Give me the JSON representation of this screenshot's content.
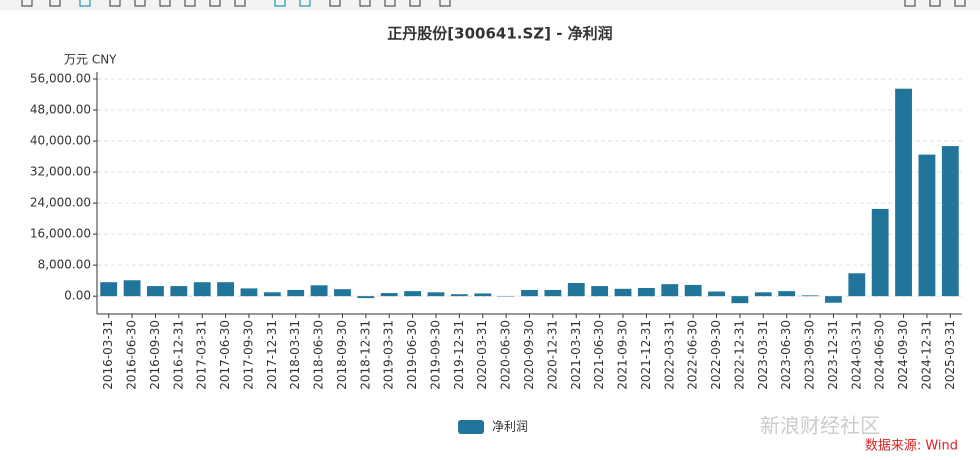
{
  "chart_data": {
    "type": "bar",
    "title": "正丹股份[300641.SZ] - 净利润",
    "unit_label": "万元  CNY",
    "categories": [
      "2016-03-31",
      "2016-06-30",
      "2016-09-30",
      "2016-12-31",
      "2017-03-31",
      "2017-06-30",
      "2017-09-30",
      "2017-12-31",
      "2018-03-31",
      "2018-06-30",
      "2018-09-30",
      "2018-12-31",
      "2019-03-31",
      "2019-06-30",
      "2019-09-30",
      "2019-12-31",
      "2020-03-31",
      "2020-06-30",
      "2020-09-30",
      "2020-12-31",
      "2021-03-31",
      "2021-06-30",
      "2021-09-30",
      "2021-12-31",
      "2022-03-31",
      "2022-06-30",
      "2022-09-30",
      "2022-12-31",
      "2023-03-31",
      "2023-06-30",
      "2023-09-30",
      "2023-12-31",
      "2024-03-31",
      "2024-06-30",
      "2024-09-30",
      "2024-12-31",
      "2025-03-31"
    ],
    "series": [
      {
        "name": "净利润",
        "color": "#21759b",
        "values": [
          3600,
          4100,
          2600,
          2600,
          3600,
          3600,
          2000,
          1000,
          1600,
          2800,
          1800,
          -500,
          800,
          1300,
          1000,
          500,
          700,
          -100,
          1600,
          1600,
          3400,
          2600,
          1900,
          2100,
          3100,
          2900,
          1200,
          -1800,
          1000,
          1300,
          200,
          -1700,
          5900,
          22500,
          53500,
          36500,
          38700
        ]
      }
    ],
    "ylim": [
      -4600,
      56000
    ],
    "yticks": [
      {
        "value": 0,
        "label": "0.00"
      },
      {
        "value": 8000,
        "label": "8,000.00"
      },
      {
        "value": 16000,
        "label": "16,000.00"
      },
      {
        "value": 24000,
        "label": "24,000.00"
      },
      {
        "value": 32000,
        "label": "32,000.00"
      },
      {
        "value": 40000,
        "label": "40,000.00"
      },
      {
        "value": 48000,
        "label": "48,000.00"
      },
      {
        "value": 56000,
        "label": "56,000.00"
      }
    ],
    "grid": true,
    "watermark": "新浪财经社区",
    "source": "数据来源: Wind"
  }
}
